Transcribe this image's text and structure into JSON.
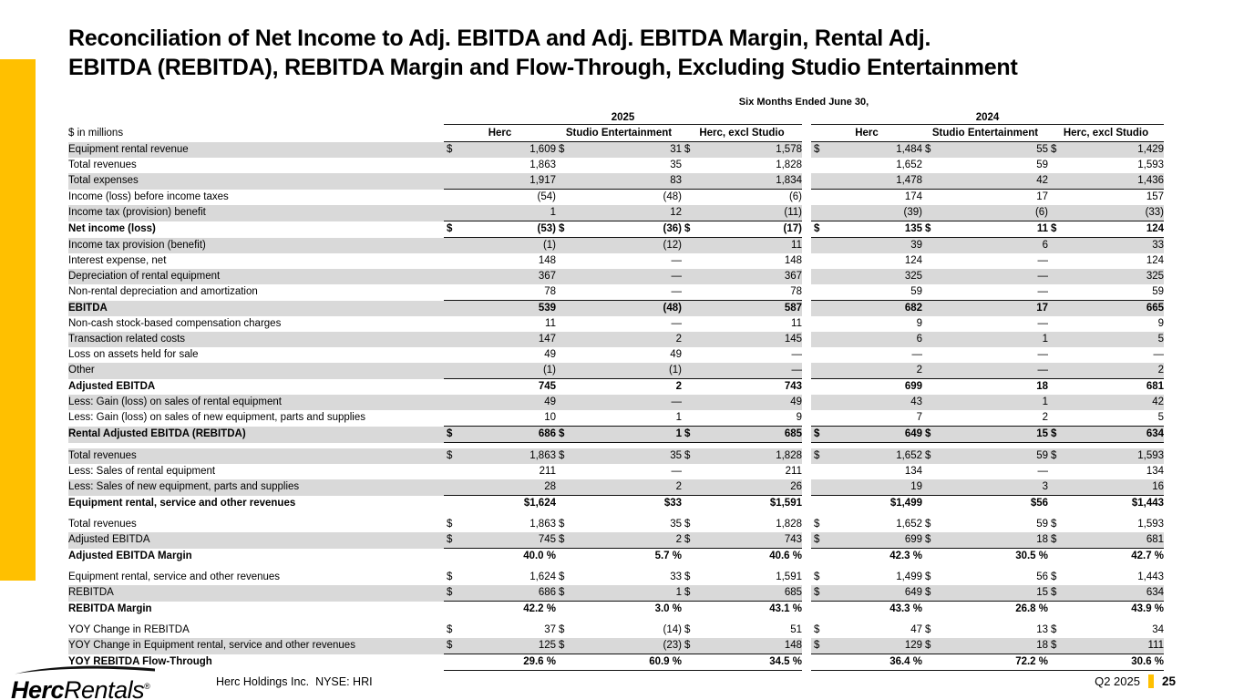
{
  "slide": {
    "title_line1": "Reconciliation of Net Income to Adj. EBITDA and Adj. EBITDA Margin, Rental Adj.",
    "title_line2": "EBITDA (REBITDA), REBITDA Margin and Flow-Through, Excluding Studio Entertainment",
    "accent_color": "#FFC000"
  },
  "table": {
    "period_header": "Six Months Ended June 30,",
    "unit_label": "$ in millions",
    "year_groups": [
      "2025",
      "2024"
    ],
    "columns": [
      "Herc",
      "Studio Entertainment",
      "Herc, excl Studio"
    ],
    "rows": [
      {
        "label": "Equipment rental revenue",
        "shaded": true,
        "dollar": true,
        "values": [
          "1,609",
          "31",
          "1,578",
          "1,484",
          "55",
          "1,429"
        ]
      },
      {
        "label": "Total revenues",
        "values": [
          "1,863",
          "35",
          "1,828",
          "1,652",
          "59",
          "1,593"
        ]
      },
      {
        "label": "Total expenses",
        "shaded": true,
        "border_bottom": true,
        "values": [
          "1,917",
          "83",
          "1,834",
          "1,478",
          "42",
          "1,436"
        ]
      },
      {
        "label": "Income (loss) before income taxes",
        "values": [
          "(54)",
          "(48)",
          "(6)",
          "174",
          "17",
          "157"
        ]
      },
      {
        "label": "Income tax (provision) benefit",
        "shaded": true,
        "border_bottom": true,
        "values": [
          "1",
          "12",
          "(11)",
          "(39)",
          "(6)",
          "(33)"
        ]
      },
      {
        "label": "Net income (loss)",
        "bold": true,
        "dollar": true,
        "border_bottom": true,
        "values": [
          "(53)",
          "(36)",
          "(17)",
          "135",
          "11",
          "124"
        ]
      },
      {
        "label": "Income tax provision (benefit)",
        "shaded": true,
        "values": [
          "(1)",
          "(12)",
          "11",
          "39",
          "6",
          "33"
        ]
      },
      {
        "label": "Interest expense, net",
        "values": [
          "148",
          "—",
          "148",
          "124",
          "—",
          "124"
        ]
      },
      {
        "label": "Depreciation of rental equipment",
        "shaded": true,
        "values": [
          "367",
          "—",
          "367",
          "325",
          "—",
          "325"
        ]
      },
      {
        "label": "Non-rental depreciation and amortization",
        "border_bottom": true,
        "values": [
          "78",
          "—",
          "78",
          "59",
          "—",
          "59"
        ]
      },
      {
        "label": "EBITDA",
        "bold": true,
        "shaded": true,
        "values": [
          "539",
          "(48)",
          "587",
          "682",
          "17",
          "665"
        ]
      },
      {
        "label": "Non-cash stock-based compensation charges",
        "values": [
          "11",
          "—",
          "11",
          "9",
          "—",
          "9"
        ]
      },
      {
        "label": "Transaction related costs",
        "shaded": true,
        "values": [
          "147",
          "2",
          "145",
          "6",
          "1",
          "5"
        ]
      },
      {
        "label": "Loss on assets held for sale",
        "values": [
          "49",
          "49",
          "—",
          "—",
          "—",
          "—"
        ]
      },
      {
        "label": "Other",
        "shaded": true,
        "border_bottom": true,
        "values": [
          "(1)",
          "(1)",
          "—",
          "2",
          "—",
          "2"
        ]
      },
      {
        "label": "Adjusted EBITDA",
        "bold": true,
        "values": [
          "745",
          "2",
          "743",
          "699",
          "18",
          "681"
        ]
      },
      {
        "label": "Less: Gain (loss) on sales of rental equipment",
        "shaded": true,
        "values": [
          "49",
          "—",
          "49",
          "43",
          "1",
          "42"
        ]
      },
      {
        "label": "Less: Gain (loss) on sales of new equipment, parts and supplies",
        "border_bottom": true,
        "values": [
          "10",
          "1",
          "9",
          "7",
          "2",
          "5"
        ]
      },
      {
        "label": "Rental Adjusted EBITDA (REBITDA)",
        "bold": true,
        "shaded": true,
        "dollar": true,
        "border_bottom": true,
        "values": [
          "686",
          "1",
          "685",
          "649",
          "15",
          "634"
        ]
      },
      {
        "label": "Total revenues",
        "gap_before": true,
        "shaded": true,
        "dollar": true,
        "values": [
          "1,863",
          "35",
          "1,828",
          "1,652",
          "59",
          "1,593"
        ]
      },
      {
        "label": "Less: Sales of rental equipment",
        "values": [
          "211",
          "—",
          "211",
          "134",
          "—",
          "134"
        ]
      },
      {
        "label": "Less: Sales of new equipment, parts and supplies",
        "shaded": true,
        "border_bottom": true,
        "values": [
          "28",
          "2",
          "26",
          "19",
          "3",
          "16"
        ]
      },
      {
        "label": "Equipment rental, service and other revenues",
        "bold": true,
        "values": [
          "$1,624",
          "$33",
          "$1,591",
          "$1,499",
          "$56",
          "$1,443"
        ]
      },
      {
        "label": "Total revenues",
        "gap_before": true,
        "dollar": true,
        "values": [
          "1,863",
          "35",
          "1,828",
          "1,652",
          "59",
          "1,593"
        ]
      },
      {
        "label": "Adjusted EBITDA",
        "shaded": true,
        "dollar": true,
        "border_bottom": true,
        "values": [
          "745",
          "2",
          "743",
          "699",
          "18",
          "681"
        ]
      },
      {
        "label": "Adjusted EBITDA Margin",
        "bold": true,
        "percent": true,
        "values": [
          "40.0 %",
          "5.7 %",
          "40.6 %",
          "42.3 %",
          "30.5 %",
          "42.7 %"
        ]
      },
      {
        "label": "Equipment rental, service and other revenues",
        "gap_before": true,
        "dollar": true,
        "values": [
          "1,624",
          "33",
          "1,591",
          "1,499",
          "56",
          "1,443"
        ]
      },
      {
        "label": "REBITDA",
        "shaded": true,
        "dollar": true,
        "border_bottom": true,
        "values": [
          "686",
          "1",
          "685",
          "649",
          "15",
          "634"
        ]
      },
      {
        "label": "REBITDA Margin",
        "bold": true,
        "percent": true,
        "values": [
          "42.2 %",
          "3.0 %",
          "43.1 %",
          "43.3 %",
          "26.8 %",
          "43.9 %"
        ]
      },
      {
        "label": "YOY Change in REBITDA",
        "gap_before": true,
        "dollar": true,
        "values": [
          "37",
          "(14)",
          "51",
          "47",
          "13",
          "34"
        ]
      },
      {
        "label": "YOY Change in Equipment rental, service and other revenues",
        "shaded": true,
        "dollar": true,
        "border_bottom": true,
        "values": [
          "125",
          "(23)",
          "148",
          "129",
          "18",
          "111"
        ]
      },
      {
        "label": "YOY REBITDA Flow-Through",
        "bold": true,
        "percent": true,
        "border_bottom": true,
        "values": [
          "29.6 %",
          "60.9 %",
          "34.5 %",
          "36.4 %",
          "72.2 %",
          "30.6 %"
        ]
      }
    ]
  },
  "footer": {
    "logo_herc": "Herc",
    "logo_rentals": "Rentals",
    "logo_reg": "®",
    "company": "Herc Holdings Inc.  NYSE: HRI",
    "period": "Q2 2025",
    "page": "25"
  }
}
